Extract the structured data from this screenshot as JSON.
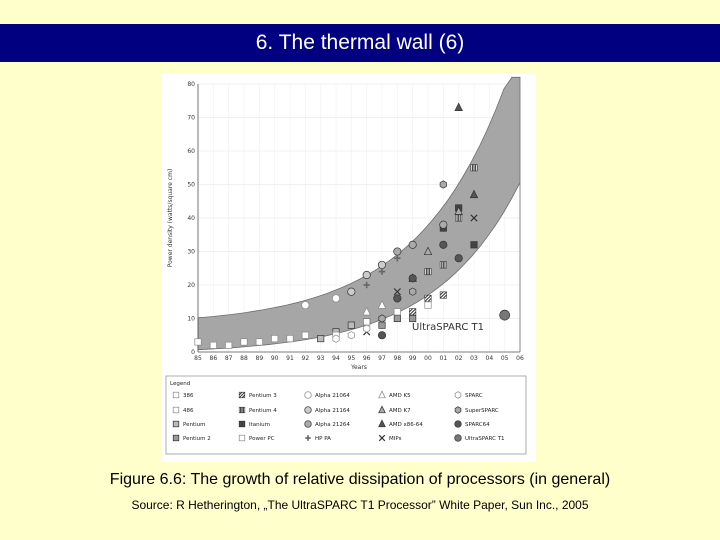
{
  "slide": {
    "title": "6. The thermal wall (6)",
    "caption": "Figure 6.6: The growth of relative dissipation of processors (in general)",
    "source": "Source: R Hetherington, „The UltraSPARC T1 Processor” White Paper, Sun Inc., 2005"
  },
  "chart_data": {
    "type": "scatter",
    "title": "",
    "ylabel": "Power density (watts/square cm)",
    "xlabel": "Years",
    "ylim": [
      0,
      80
    ],
    "yticks": [
      0,
      10,
      20,
      30,
      40,
      50,
      60,
      70,
      80
    ],
    "xticks": [
      "85",
      "86",
      "87",
      "88",
      "89",
      "90",
      "91",
      "92",
      "93",
      "94",
      "95",
      "96",
      "97",
      "98",
      "99",
      "00",
      "01",
      "02",
      "03",
      "04",
      "05",
      "06"
    ],
    "annotation": "UltraSPARC T1",
    "grid": true,
    "legend_position": "bottom",
    "band_color": "#a6a6a6",
    "legend_title": "Legend",
    "series": [
      {
        "name": "386",
        "marker": "square-open",
        "color": "#dddddd",
        "points": [
          [
            85,
            3
          ],
          [
            86,
            2
          ],
          [
            87,
            2
          ],
          [
            88,
            3
          ]
        ]
      },
      {
        "name": "486",
        "marker": "square-open",
        "color": "#cccccc",
        "points": [
          [
            89,
            3
          ],
          [
            90,
            4
          ],
          [
            91,
            4
          ],
          [
            92,
            5
          ]
        ]
      },
      {
        "name": "Pentium",
        "marker": "square",
        "color": "#bbbbbb",
        "points": [
          [
            93,
            4
          ],
          [
            94,
            6
          ],
          [
            95,
            8
          ],
          [
            96,
            9
          ]
        ]
      },
      {
        "name": "Pentium 2",
        "marker": "square",
        "color": "#999999",
        "points": [
          [
            97,
            8
          ],
          [
            98,
            10
          ],
          [
            99,
            10
          ]
        ]
      },
      {
        "name": "Pentium 3",
        "marker": "hatch",
        "color": "#777777",
        "points": [
          [
            99,
            12
          ],
          [
            0,
            16
          ],
          [
            1,
            17
          ]
        ]
      },
      {
        "name": "Pentium 4",
        "marker": "bars",
        "color": "#555555",
        "points": [
          [
            0,
            24
          ],
          [
            1,
            26
          ],
          [
            2,
            40
          ],
          [
            3,
            55
          ]
        ]
      },
      {
        "name": "Itanium",
        "marker": "square",
        "color": "#444444",
        "points": [
          [
            1,
            37
          ],
          [
            2,
            43
          ],
          [
            3,
            32
          ]
        ]
      },
      {
        "name": "Power PC",
        "marker": "square-open",
        "color": "#666666",
        "points": [
          [
            94,
            5
          ],
          [
            96,
            9
          ],
          [
            98,
            12
          ],
          [
            0,
            14
          ]
        ]
      },
      {
        "name": "Alpha 21064",
        "marker": "circle-open",
        "color": "#dddddd",
        "points": [
          [
            92,
            14
          ],
          [
            94,
            16
          ]
        ]
      },
      {
        "name": "Alpha 21164",
        "marker": "circle",
        "color": "#cccccc",
        "points": [
          [
            95,
            18
          ],
          [
            96,
            23
          ],
          [
            97,
            26
          ]
        ]
      },
      {
        "name": "Alpha 21264",
        "marker": "circle",
        "color": "#aaaaaa",
        "points": [
          [
            98,
            30
          ],
          [
            99,
            32
          ],
          [
            1,
            38
          ]
        ]
      },
      {
        "name": "HP PA",
        "marker": "plus",
        "color": "#bbbbbb",
        "points": [
          [
            96,
            20
          ],
          [
            97,
            24
          ],
          [
            98,
            28
          ]
        ]
      },
      {
        "name": "AMD K5",
        "marker": "triangle-open",
        "color": "#cccccc",
        "points": [
          [
            96,
            12
          ],
          [
            97,
            14
          ]
        ]
      },
      {
        "name": "AMD K7",
        "marker": "triangle",
        "color": "#aaaaaa",
        "points": [
          [
            99,
            22
          ],
          [
            0,
            30
          ],
          [
            2,
            42
          ]
        ]
      },
      {
        "name": "AMD x86-64",
        "marker": "triangle",
        "color": "#555555",
        "points": [
          [
            3,
            47
          ],
          [
            2,
            73
          ]
        ]
      },
      {
        "name": "MIPs",
        "marker": "cross",
        "color": "#444444",
        "points": [
          [
            96,
            6
          ],
          [
            98,
            18
          ],
          [
            3,
            40
          ]
        ]
      },
      {
        "name": "SPARC",
        "marker": "hexagon-open",
        "color": "#dddddd",
        "points": [
          [
            94,
            4
          ],
          [
            95,
            5
          ],
          [
            96,
            7
          ]
        ]
      },
      {
        "name": "SuperSPARC",
        "marker": "hexagon",
        "color": "#aaaaaa",
        "points": [
          [
            97,
            10
          ],
          [
            99,
            18
          ],
          [
            1,
            50
          ]
        ]
      },
      {
        "name": "SPARC64",
        "marker": "circle",
        "color": "#555555",
        "points": [
          [
            97,
            5
          ],
          [
            98,
            16
          ],
          [
            99,
            22
          ],
          [
            1,
            32
          ],
          [
            2,
            28
          ]
        ]
      },
      {
        "name": "UltraSPARC T1",
        "marker": "circle",
        "color": "#777777",
        "points": [
          [
            5,
            11
          ]
        ]
      }
    ]
  }
}
